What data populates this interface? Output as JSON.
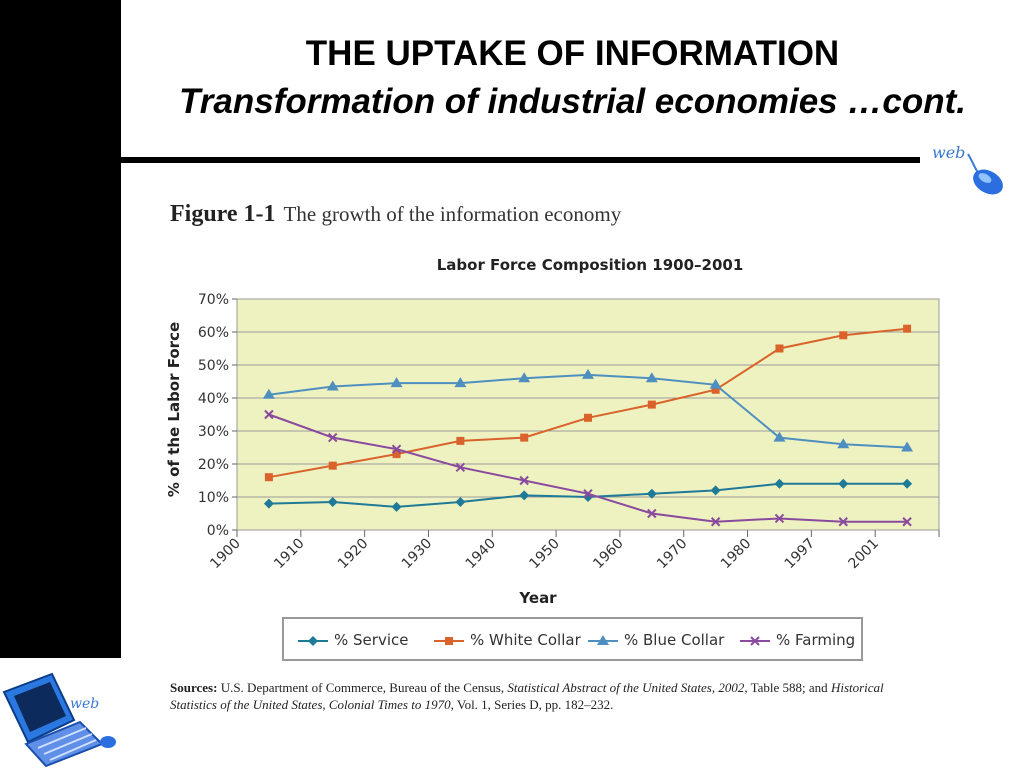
{
  "slide": {
    "title": "THE UPTAKE OF INFORMATION",
    "subtitle": "Transformation of industrial economies …cont."
  },
  "figure": {
    "number": "Figure 1-1",
    "caption": "The growth of the information economy"
  },
  "sources": {
    "label": "Sources:",
    "text_1": "U.S. Department of Commerce, Bureau of the Census,",
    "italic_1": "Statistical Abstract of the United States, 2002,",
    "text_2": "Table 588; and",
    "italic_2": "Historical Statistics of the United States, Colonial Times to 1970,",
    "text_3": "Vol. 1, Series D, pp. 182–232."
  },
  "colors": {
    "plot_bg": "#eef2c0",
    "service": "#1f7a98",
    "white_collar": "#d9632a",
    "blue_collar": "#4f8fc0",
    "farming": "#8a4a9e"
  },
  "chart_data": {
    "type": "line",
    "title": "Labor Force Composition 1900–2001",
    "xlabel": "Year",
    "ylabel": "% of the Labor Force",
    "categories": [
      "1900",
      "1910",
      "1920",
      "1930",
      "1940",
      "1950",
      "1960",
      "1970",
      "1980",
      "1997",
      "2001"
    ],
    "point_positions": [
      "1900-1910",
      "1910-1920",
      "1920-1930",
      "1930-1940",
      "1940-1950",
      "1950-1960",
      "1960-1970",
      "1970-1980",
      "1980-1997",
      "1997-2001",
      "2001"
    ],
    "yticks": [
      "0%",
      "10%",
      "20%",
      "30%",
      "40%",
      "50%",
      "60%",
      "70%"
    ],
    "ylim": [
      0,
      70
    ],
    "grid": true,
    "legend": "bottom",
    "series": [
      {
        "name": "% Service",
        "marker": "diamond",
        "values": [
          8,
          8.5,
          7,
          8.5,
          10.5,
          10,
          11,
          12,
          14,
          14,
          14
        ]
      },
      {
        "name": "% White Collar",
        "marker": "square",
        "values": [
          16,
          19.5,
          23,
          27,
          28,
          34,
          38,
          42.5,
          55,
          59,
          61
        ]
      },
      {
        "name": "% Blue Collar",
        "marker": "triangle",
        "values": [
          41,
          43.5,
          44.5,
          44.5,
          46,
          47,
          46,
          44,
          28,
          26,
          25
        ]
      },
      {
        "name": "% Farming",
        "marker": "x",
        "values": [
          35,
          28,
          24.5,
          19,
          15,
          11,
          5,
          2.5,
          3.5,
          2.5,
          2.5
        ]
      }
    ]
  }
}
